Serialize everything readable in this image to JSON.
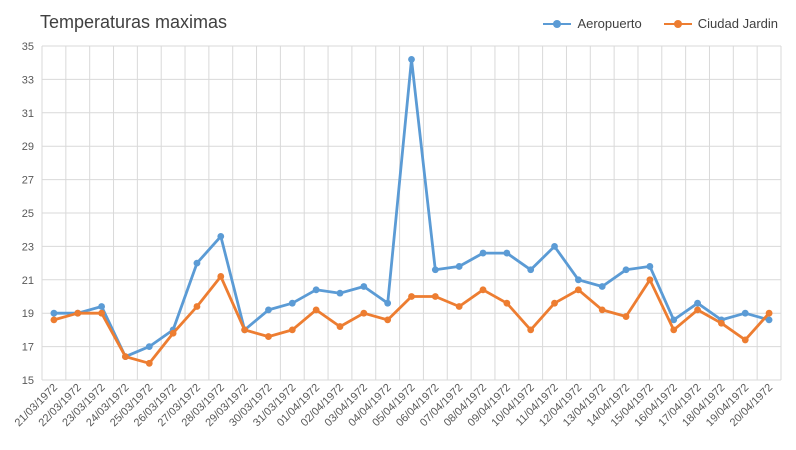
{
  "chart_data": {
    "type": "line",
    "title": "Temperaturas maximas",
    "xlabel": "",
    "ylabel": "",
    "ylim": [
      15,
      35
    ],
    "yticks": [
      15,
      17,
      19,
      21,
      23,
      25,
      27,
      29,
      31,
      33,
      35
    ],
    "grid": true,
    "legend": "top-right",
    "categories": [
      "21/03/1972",
      "22/03/1972",
      "23/03/1972",
      "24/03/1972",
      "25/03/1972",
      "26/03/1972",
      "27/03/1972",
      "28/03/1972",
      "29/03/1972",
      "30/03/1972",
      "31/03/1972",
      "01/04/1972",
      "02/04/1972",
      "03/04/1972",
      "04/04/1972",
      "05/04/1972",
      "06/04/1972",
      "07/04/1972",
      "08/04/1972",
      "09/04/1972",
      "10/04/1972",
      "11/04/1972",
      "12/04/1972",
      "13/04/1972",
      "14/04/1972",
      "15/04/1972",
      "16/04/1972",
      "17/04/1972",
      "18/04/1972",
      "19/04/1972",
      "20/04/1972"
    ],
    "series": [
      {
        "name": "Aeropuerto",
        "color": "#5B9BD5",
        "values": [
          19.0,
          19.0,
          19.4,
          16.4,
          17.0,
          18.0,
          22.0,
          23.6,
          18.0,
          19.2,
          19.6,
          20.4,
          20.2,
          20.6,
          19.6,
          34.2,
          21.6,
          21.8,
          22.6,
          22.6,
          21.6,
          23.0,
          21.0,
          20.6,
          21.6,
          21.8,
          18.6,
          19.6,
          18.6,
          19.0,
          18.6
        ]
      },
      {
        "name": "Ciudad Jardin",
        "color": "#ED7D31",
        "values": [
          18.6,
          19.0,
          19.0,
          16.4,
          16.0,
          17.8,
          19.4,
          21.2,
          18.0,
          17.6,
          18.0,
          19.2,
          18.2,
          19.0,
          18.6,
          20.0,
          20.0,
          19.4,
          20.4,
          19.6,
          18.0,
          19.6,
          20.4,
          19.2,
          18.8,
          21.0,
          18.0,
          19.2,
          18.4,
          17.4,
          19.0
        ]
      }
    ]
  }
}
